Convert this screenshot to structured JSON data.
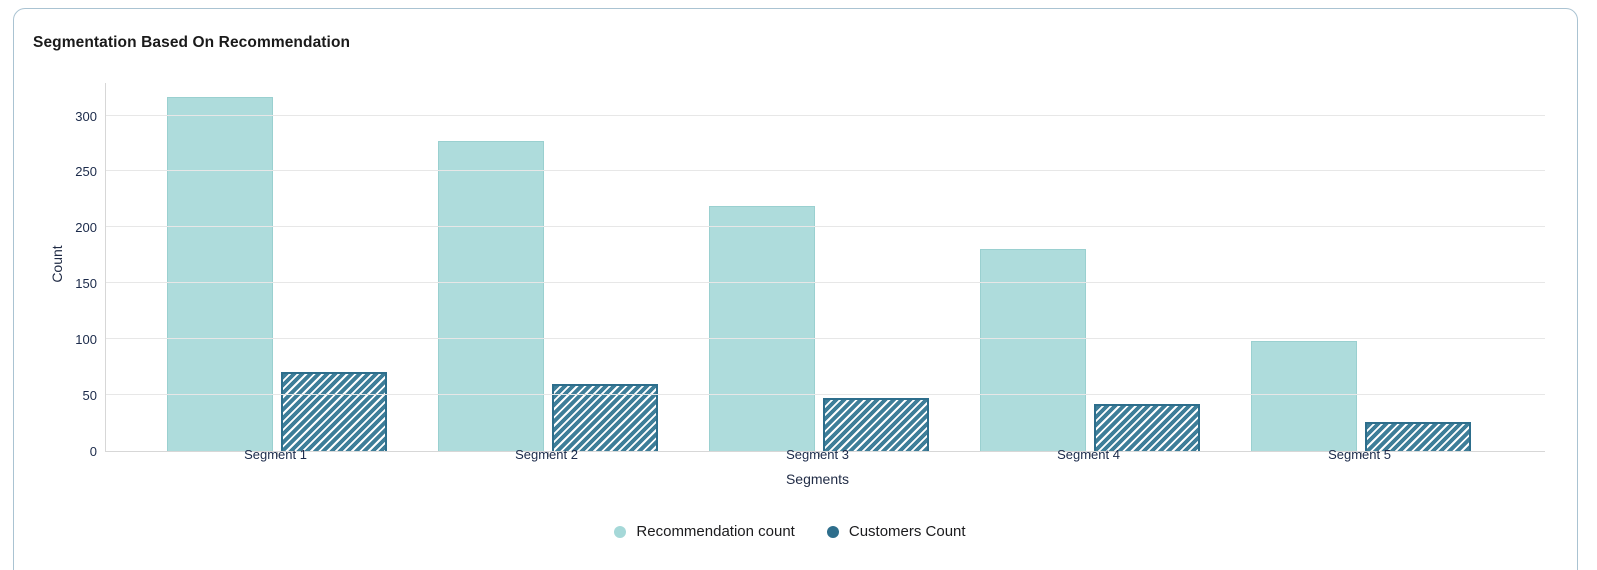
{
  "card": {
    "title": "Segmentation Based On Recommendation"
  },
  "chart_data": {
    "type": "bar",
    "title": "Segmentation Based On Recommendation",
    "categories": [
      "Segment 1",
      "Segment 2",
      "Segment 3",
      "Segment 4",
      "Segment 5"
    ],
    "series": [
      {
        "name": "Recommendation count",
        "values": [
          317,
          277,
          219,
          181,
          98
        ],
        "color": "#aedcdc",
        "border_color": "#9ad0d0",
        "legend_color": "#a5d8d8",
        "pattern": "solid"
      },
      {
        "name": "Customers Count",
        "values": [
          71,
          60,
          47,
          42,
          26
        ],
        "color": "#3e7e99",
        "border_color": "#2d6e8c",
        "legend_color": "#2e6e8c",
        "pattern": "diagonal-hatch"
      }
    ],
    "xlabel": "Segments",
    "ylabel": "Count",
    "ylim": [
      0,
      330
    ],
    "yticks": [
      0,
      50,
      100,
      150,
      200,
      250,
      300
    ],
    "grid": true,
    "legend_position": "bottom",
    "gridline_color": "#e7e7e7",
    "axis_line_color": "#d7d7d7",
    "tick_label_color": "#1b2a4a"
  }
}
